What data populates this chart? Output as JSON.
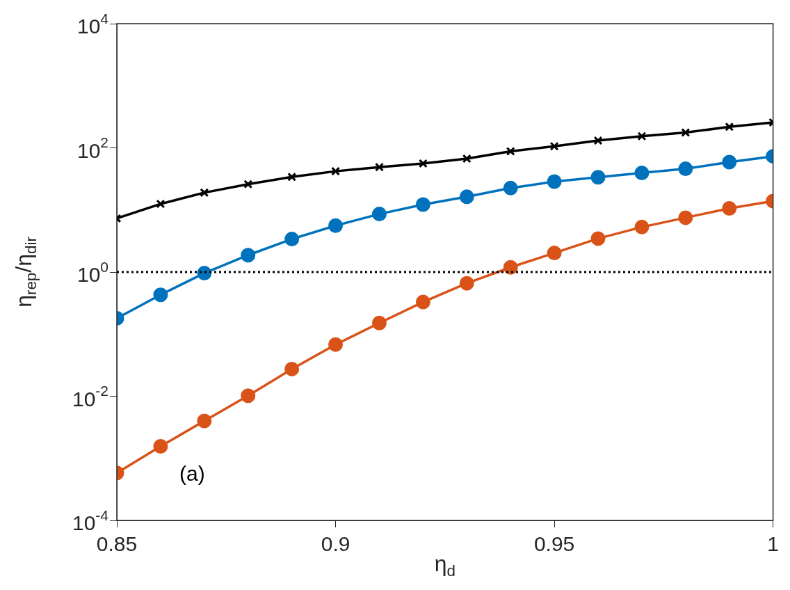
{
  "chart_data": {
    "type": "line",
    "x": [
      0.85,
      0.86,
      0.87,
      0.88,
      0.89,
      0.9,
      0.91,
      0.92,
      0.93,
      0.94,
      0.95,
      0.96,
      0.97,
      0.98,
      0.99,
      1.0
    ],
    "series": [
      {
        "color": "#000000",
        "marker": "cross",
        "values": [
          7.3,
          12.5,
          19,
          26,
          34,
          42,
          49,
          56,
          67,
          88,
          106,
          131,
          154,
          176,
          218,
          257
        ]
      },
      {
        "color": "#0072bd",
        "marker": "circle",
        "values": [
          0.18,
          0.43,
          0.96,
          1.87,
          3.4,
          5.6,
          8.6,
          12.2,
          16.3,
          22.5,
          28.6,
          33.6,
          39.4,
          46,
          59,
          73
        ]
      },
      {
        "color": "#d95319",
        "marker": "circle",
        "values": [
          0.00058,
          0.00156,
          0.004,
          0.0102,
          0.0274,
          0.068,
          0.151,
          0.329,
          0.659,
          1.19,
          2.03,
          3.46,
          5.3,
          7.5,
          10.6,
          13.9
        ]
      }
    ],
    "xlabel": "η$_{d}$",
    "ylabel": "η$_{rep}$/η$_{dir}$",
    "xlim": [
      0.85,
      1
    ],
    "xticks": [
      0.85,
      0.9,
      0.95,
      1
    ],
    "log": "y",
    "ylim": [
      0.0001,
      10000
    ],
    "yticks": [
      {
        "value": 0.0001,
        "label": "10$^{-4}$"
      },
      {
        "value": 0.01,
        "label": "10$^{-2}$"
      },
      {
        "value": 1,
        "label": "10$^{0}$"
      },
      {
        "value": 100,
        "label": "10$^{2}$"
      },
      {
        "value": 10000,
        "label": "10$^{4}$"
      }
    ],
    "ref_lines": [
      {
        "axis": "y",
        "value": 1,
        "color": "#000000",
        "line_style": "dotted"
      }
    ],
    "annotations": [
      "(a)"
    ],
    "grid": false,
    "line_style": "solid"
  }
}
